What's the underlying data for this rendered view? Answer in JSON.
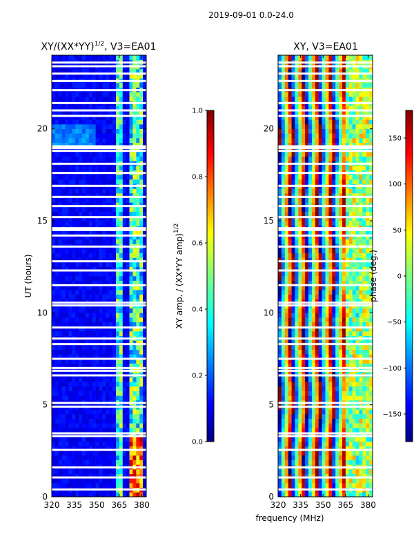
{
  "suptitle": "2019-09-01 0.0-24.0",
  "xlabel": "frequency (MHz)",
  "colors": {
    "jet": [
      "#00007f",
      "#0000ff",
      "#007fff",
      "#00ffff",
      "#7fff7f",
      "#ffff00",
      "#ff7f00",
      "#ff0000",
      "#7f0000"
    ]
  },
  "chart_data": [
    {
      "type": "heatmap",
      "title": "XY/(XX*YY)",
      "title_superscript": "1/2",
      "title_suffix": ", V3=EA01",
      "xlabel": "",
      "ylabel": "UT (hours)",
      "xlim": [
        320,
        383
      ],
      "ylim": [
        0,
        24
      ],
      "xticks": [
        320,
        335,
        350,
        365,
        380
      ],
      "yticks": [
        0,
        5,
        10,
        15,
        20
      ],
      "value_description": "normalized XY amplitude (mostly ~0.05–0.2 background, strong 0.6–1.0 features near 365–380 MHz)",
      "colorbar": {
        "label": "XY amp. / (XX*YY amp)",
        "label_superscript": "1/2",
        "range": [
          0.0,
          1.0
        ],
        "ticks": [
          "0.0",
          "0.2",
          "0.4",
          "0.6",
          "0.8",
          "1.0"
        ],
        "tick_values": [
          0.0,
          0.2,
          0.4,
          0.6,
          0.8,
          1.0
        ]
      }
    },
    {
      "type": "heatmap",
      "title": "XY, V3=EA01",
      "xlabel": "frequency (MHz)",
      "ylabel": "",
      "xlim": [
        320,
        383
      ],
      "ylim": [
        0,
        24
      ],
      "xticks": [
        320,
        335,
        350,
        365,
        380
      ],
      "yticks": [
        0,
        5,
        10,
        15,
        20
      ],
      "value_description": "XY phase in degrees, vertical wrapping bands across frequency",
      "colorbar": {
        "label": "phase (deg.)",
        "range": [
          -180,
          180
        ],
        "ticks": [
          "−150",
          "−100",
          "−50",
          "0",
          "50",
          "100",
          "150"
        ],
        "tick_values": [
          -150,
          -100,
          -50,
          0,
          50,
          100,
          150
        ]
      }
    }
  ]
}
